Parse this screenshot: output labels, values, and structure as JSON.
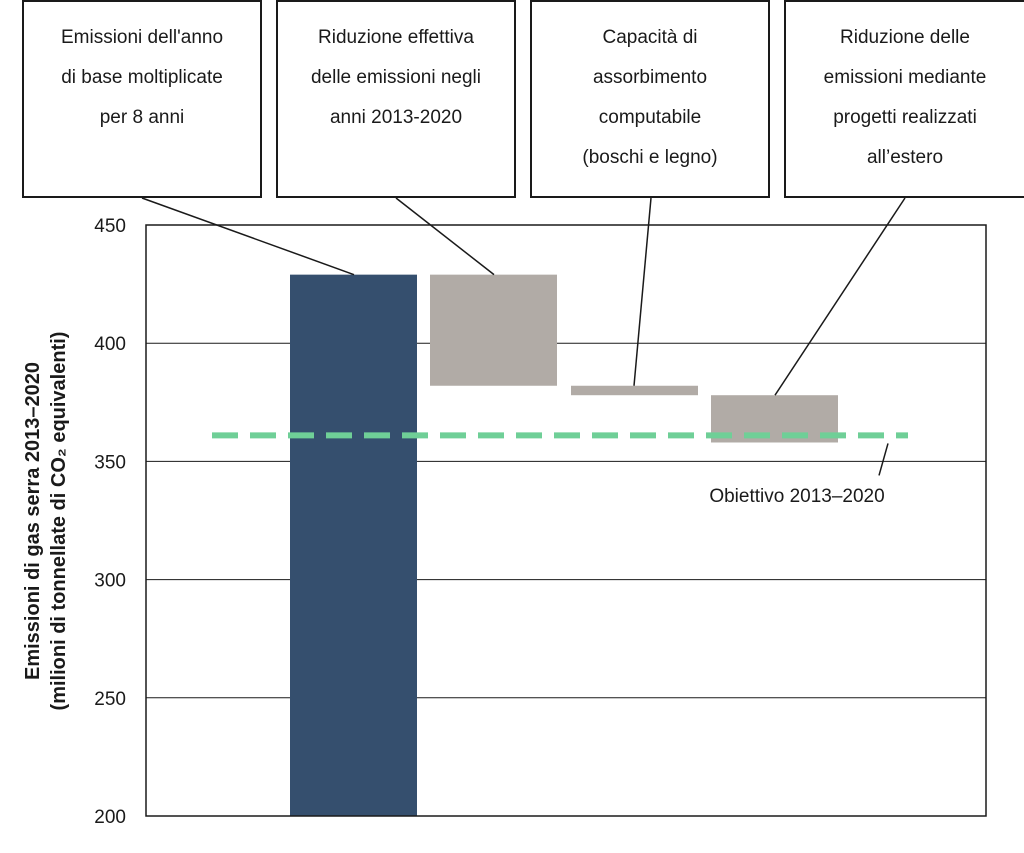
{
  "chart_data": {
    "type": "bar",
    "subtype": "waterfall",
    "ylabel_line1": "Emissioni di gas serra 2013–2020",
    "ylabel_line2": "(milioni di tonnellate di CO₂ equivalenti)",
    "ylim": [
      200,
      450
    ],
    "yticks": [
      200,
      250,
      300,
      350,
      400,
      450
    ],
    "grid": true,
    "bars": [
      {
        "label_lines": [
          "Emissioni dell'anno",
          "di base moltiplicate",
          "per 8 anni"
        ],
        "start": 200,
        "end": 429,
        "color": "#354f6e"
      },
      {
        "label_lines": [
          "Riduzione effettiva",
          "delle emissioni negli",
          "anni 2013-2020"
        ],
        "start": 429,
        "end": 382,
        "color": "#b1aba6"
      },
      {
        "label_lines": [
          "Capacità di",
          "assorbimento",
          "computabile",
          "(boschi e legno)"
        ],
        "start": 382,
        "end": 378,
        "color": "#b1aba6"
      },
      {
        "label_lines": [
          "Riduzione delle",
          "emissioni mediante",
          "progetti realizzati",
          "all’estero"
        ],
        "start": 378,
        "end": 358,
        "color": "#b1aba6"
      }
    ],
    "target": {
      "label": "Obiettivo 2013–2020",
      "value": 361,
      "color": "#6fcf97",
      "style": "dashed"
    }
  }
}
